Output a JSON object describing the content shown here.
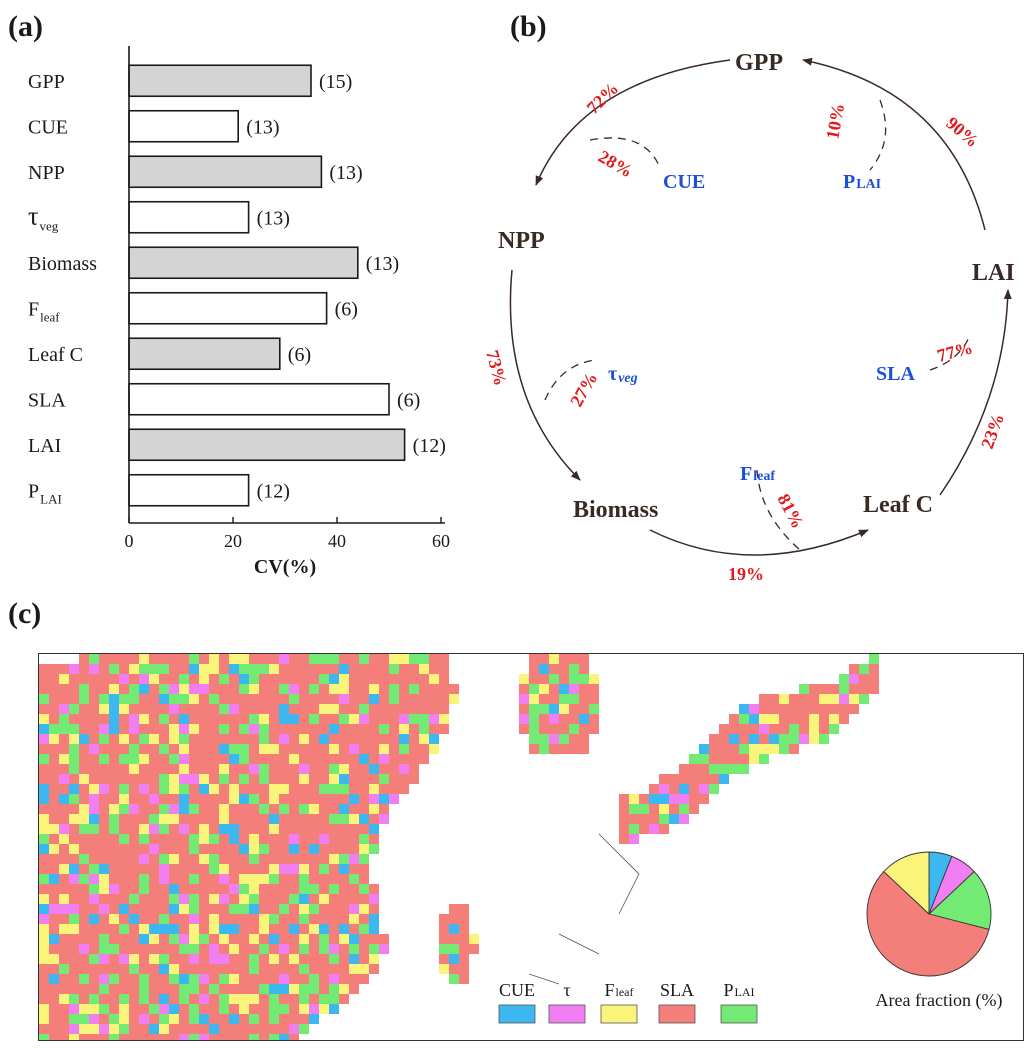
{
  "panels": {
    "a": "(a)",
    "b": "(b)",
    "c": "(c)"
  },
  "colors": {
    "bar_fill_even": "#d4d4d4",
    "bar_fill_odd": "#ffffff",
    "arrow": "#3a2a26",
    "node": "#3a2a26",
    "control": "#1d4fd8",
    "percent": "#e31a1c"
  },
  "chart_data": [
    {
      "type": "bar",
      "orientation": "horizontal",
      "categories": [
        {
          "main": "GPP",
          "sub": ""
        },
        {
          "main": "CUE",
          "sub": ""
        },
        {
          "main": "NPP",
          "sub": ""
        },
        {
          "main": "τ",
          "sub": "veg"
        },
        {
          "main": "Biomass",
          "sub": ""
        },
        {
          "main": "F",
          "sub": "leaf"
        },
        {
          "main": "Leaf  C",
          "sub": ""
        },
        {
          "main": "SLA",
          "sub": ""
        },
        {
          "main": "LAI",
          "sub": ""
        },
        {
          "main": "P",
          "sub": "LAI"
        }
      ],
      "values": [
        35,
        21,
        37,
        23,
        44,
        38,
        29,
        50,
        53,
        23
      ],
      "counts": [
        "(15)",
        "(13)",
        "(13)",
        "(13)",
        "(13)",
        "(6)",
        "(6)",
        "(6)",
        "(12)",
        "(12)"
      ],
      "xlabel": "CV(%)",
      "xlim": [
        0,
        60
      ],
      "xticks": [
        "0",
        "20",
        "40",
        "60"
      ]
    },
    {
      "type": "diagram",
      "nodes": [
        {
          "id": "gpp",
          "label": "GPP",
          "sub": ""
        },
        {
          "id": "npp",
          "label": "NPP",
          "sub": ""
        },
        {
          "id": "biomass",
          "label": "Biomass",
          "sub": ""
        },
        {
          "id": "leafc",
          "label": "Leaf C",
          "sub": ""
        },
        {
          "id": "lai",
          "label": "LAI",
          "sub": ""
        }
      ],
      "controls": [
        {
          "id": "cue",
          "label": "CUE",
          "sub": ""
        },
        {
          "id": "plai",
          "label": "P",
          "sub": "LAI"
        },
        {
          "id": "tau",
          "label": "τ",
          "sub": "veg"
        },
        {
          "id": "sla",
          "label": "SLA",
          "sub": ""
        },
        {
          "id": "fleaf",
          "label": "F",
          "sub": "leaf"
        }
      ],
      "percents": {
        "gpp_npp": "72%",
        "cue": "28%",
        "lai_gpp": "90%",
        "plai": "10%",
        "npp_biomass": "73%",
        "tau": "27%",
        "leafc_lai": "23%",
        "sla": "77%",
        "biomass_leafc": "19%",
        "fleaf": "81%"
      }
    },
    {
      "type": "pie",
      "label": "Area fraction (%)",
      "legend": [
        {
          "name": "CUE",
          "sub": "",
          "color": "#3db7f0"
        },
        {
          "name": "τ",
          "sub": "",
          "color": "#f27ff2"
        },
        {
          "name": "F",
          "sub": "leaf",
          "color": "#fbf47a"
        },
        {
          "name": "SLA",
          "sub": "",
          "color": "#f47f7a"
        },
        {
          "name": "P",
          "sub": "LAI",
          "color": "#73ea73"
        }
      ],
      "values": [
        6,
        7,
        58,
        13,
        16
      ],
      "order": [
        "CUE",
        "τ",
        "P_LAI",
        "SLA",
        "F_leaf"
      ]
    }
  ]
}
